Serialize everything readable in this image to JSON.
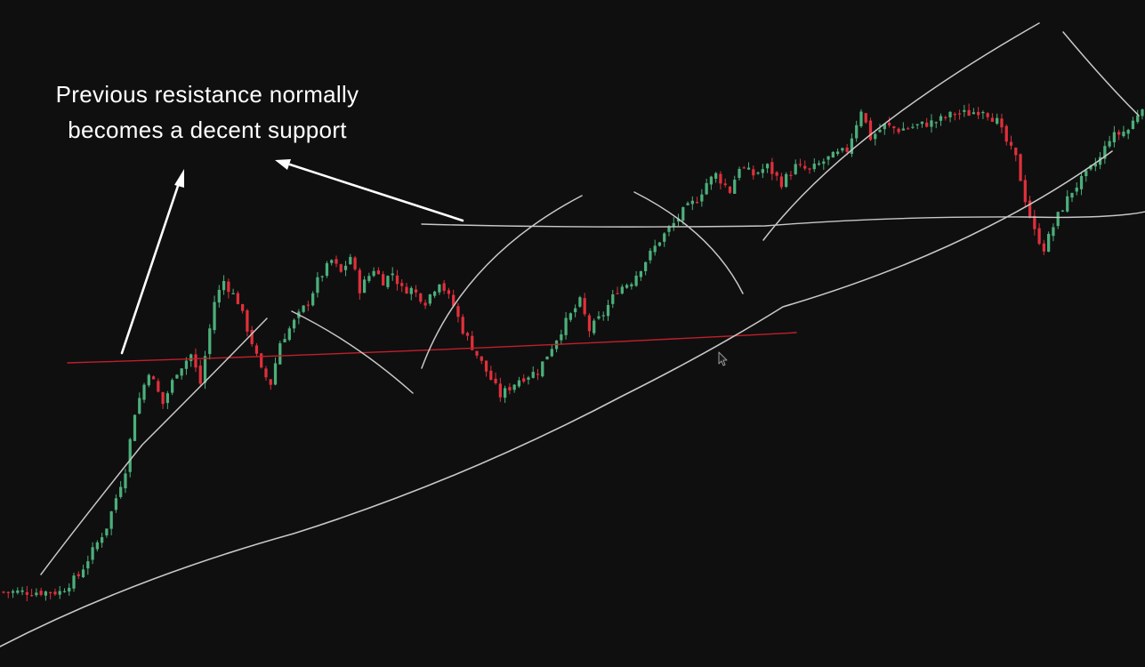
{
  "annotation": {
    "line1": "Previous resistance normally",
    "line2": "becomes a decent support"
  },
  "colors": {
    "background": "#0f0f10",
    "up_candle": "#4caf7a",
    "down_candle": "#e0303a",
    "drawing": "#c8c8c8",
    "support_line": "#c0202a",
    "annotation_text": "#ffffff"
  },
  "chart_data": {
    "type": "candlestick",
    "title": "",
    "xlabel": "",
    "ylabel": "",
    "grid": false,
    "close_path": [
      [
        0,
        14
      ],
      [
        12,
        14
      ],
      [
        16,
        18
      ],
      [
        22,
        30
      ],
      [
        26,
        44
      ],
      [
        28,
        58
      ],
      [
        31,
        68
      ],
      [
        34,
        60
      ],
      [
        37,
        68
      ],
      [
        40,
        72
      ],
      [
        42,
        65
      ],
      [
        45,
        85
      ],
      [
        47,
        90
      ],
      [
        50,
        85
      ],
      [
        53,
        75
      ],
      [
        55,
        68
      ],
      [
        57,
        65
      ],
      [
        59,
        75
      ],
      [
        62,
        80
      ],
      [
        65,
        85
      ],
      [
        67,
        90
      ],
      [
        70,
        95
      ],
      [
        72,
        92
      ],
      [
        74,
        96
      ],
      [
        76,
        88
      ],
      [
        79,
        93
      ],
      [
        81,
        90
      ],
      [
        83,
        92
      ],
      [
        85,
        88
      ],
      [
        87,
        88
      ],
      [
        90,
        85
      ],
      [
        93,
        90
      ],
      [
        96,
        84
      ],
      [
        98,
        78
      ],
      [
        100,
        74
      ],
      [
        103,
        68
      ],
      [
        106,
        62
      ],
      [
        110,
        66
      ],
      [
        114,
        68
      ],
      [
        117,
        74
      ],
      [
        120,
        80
      ],
      [
        123,
        85
      ],
      [
        125,
        78
      ],
      [
        128,
        82
      ],
      [
        131,
        88
      ],
      [
        134,
        90
      ],
      [
        137,
        95
      ],
      [
        140,
        100
      ],
      [
        143,
        104
      ],
      [
        145,
        107
      ],
      [
        148,
        110
      ],
      [
        150,
        114
      ],
      [
        152,
        116
      ],
      [
        155,
        112
      ],
      [
        157,
        118
      ],
      [
        160,
        116
      ],
      [
        163,
        118
      ],
      [
        166,
        114
      ],
      [
        169,
        118
      ],
      [
        172,
        117
      ],
      [
        176,
        120
      ],
      [
        180,
        122
      ],
      [
        183,
        132
      ],
      [
        185,
        125
      ],
      [
        188,
        128
      ],
      [
        191,
        127
      ],
      [
        195,
        128
      ],
      [
        199,
        129
      ],
      [
        203,
        131
      ],
      [
        206,
        131
      ],
      [
        209,
        132
      ],
      [
        212,
        129
      ],
      [
        214,
        124
      ],
      [
        216,
        120
      ],
      [
        218,
        110
      ],
      [
        220,
        102
      ],
      [
        222,
        98
      ],
      [
        225,
        106
      ],
      [
        228,
        112
      ],
      [
        231,
        116
      ],
      [
        234,
        120
      ],
      [
        236,
        125
      ],
      [
        240,
        127
      ],
      [
        243,
        133
      ]
    ],
    "ylim": [
      0,
      150
    ],
    "support_level": 59,
    "resistance_level": 82
  }
}
